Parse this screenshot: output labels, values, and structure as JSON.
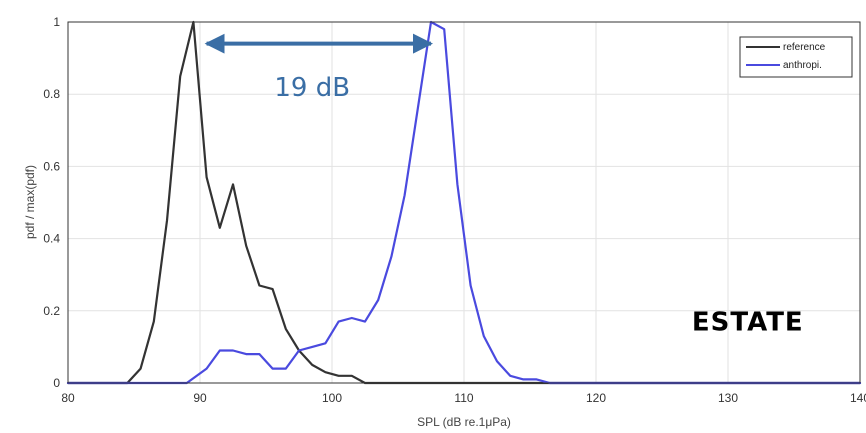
{
  "chart_data": {
    "type": "line",
    "xlabel": "SPL (dB re.1μPa)",
    "ylabel": "pdf / max(pdf)",
    "xlim": [
      80,
      140
    ],
    "ylim": [
      0,
      1
    ],
    "xticks": [
      "80",
      "90",
      "100",
      "110",
      "120",
      "130",
      "140"
    ],
    "yticks": [
      "0",
      "0.2",
      "0.4",
      "0.6",
      "0.8",
      "1"
    ],
    "grid": true,
    "legend_position": "top-right",
    "series": [
      {
        "name": "reference",
        "color": "#333333",
        "x": [
          80,
          84.5,
          85.5,
          86.5,
          87.5,
          88.5,
          89.5,
          90.5,
          91.5,
          92.5,
          93.5,
          94.5,
          95.5,
          96.5,
          97.5,
          98.5,
          99.5,
          100.5,
          101.5,
          102.5,
          103.5,
          140
        ],
        "y": [
          0,
          0,
          0.04,
          0.17,
          0.45,
          0.85,
          1.0,
          0.57,
          0.43,
          0.55,
          0.38,
          0.27,
          0.26,
          0.15,
          0.09,
          0.05,
          0.03,
          0.02,
          0.02,
          0.0,
          0.0,
          0
        ]
      },
      {
        "name": "anthropi.",
        "color": "#4a4adf",
        "x": [
          80,
          89,
          90.5,
          91.5,
          92.5,
          93.5,
          94.5,
          95.5,
          96.5,
          97.5,
          98.5,
          99.5,
          100.5,
          101.5,
          102.5,
          103.5,
          104.5,
          105.5,
          106.5,
          107.5,
          108.5,
          109.5,
          110.5,
          111.5,
          112.5,
          113.5,
          114.5,
          115.5,
          116.5,
          140
        ],
        "y": [
          0,
          0,
          0.04,
          0.09,
          0.09,
          0.08,
          0.08,
          0.04,
          0.04,
          0.09,
          0.1,
          0.11,
          0.17,
          0.18,
          0.17,
          0.23,
          0.35,
          0.52,
          0.76,
          1.0,
          0.98,
          0.55,
          0.27,
          0.13,
          0.06,
          0.02,
          0.01,
          0.01,
          0.0,
          0
        ]
      }
    ],
    "annotations": [
      {
        "text": "19 dB",
        "arrow_from_x": 90.5,
        "arrow_to_x": 107.5,
        "arrow_y": 0.94,
        "text_x": 98.5,
        "text_y": 0.82
      },
      {
        "text": "ESTATE",
        "text_x": 131.5,
        "text_y": 0.17
      }
    ]
  }
}
